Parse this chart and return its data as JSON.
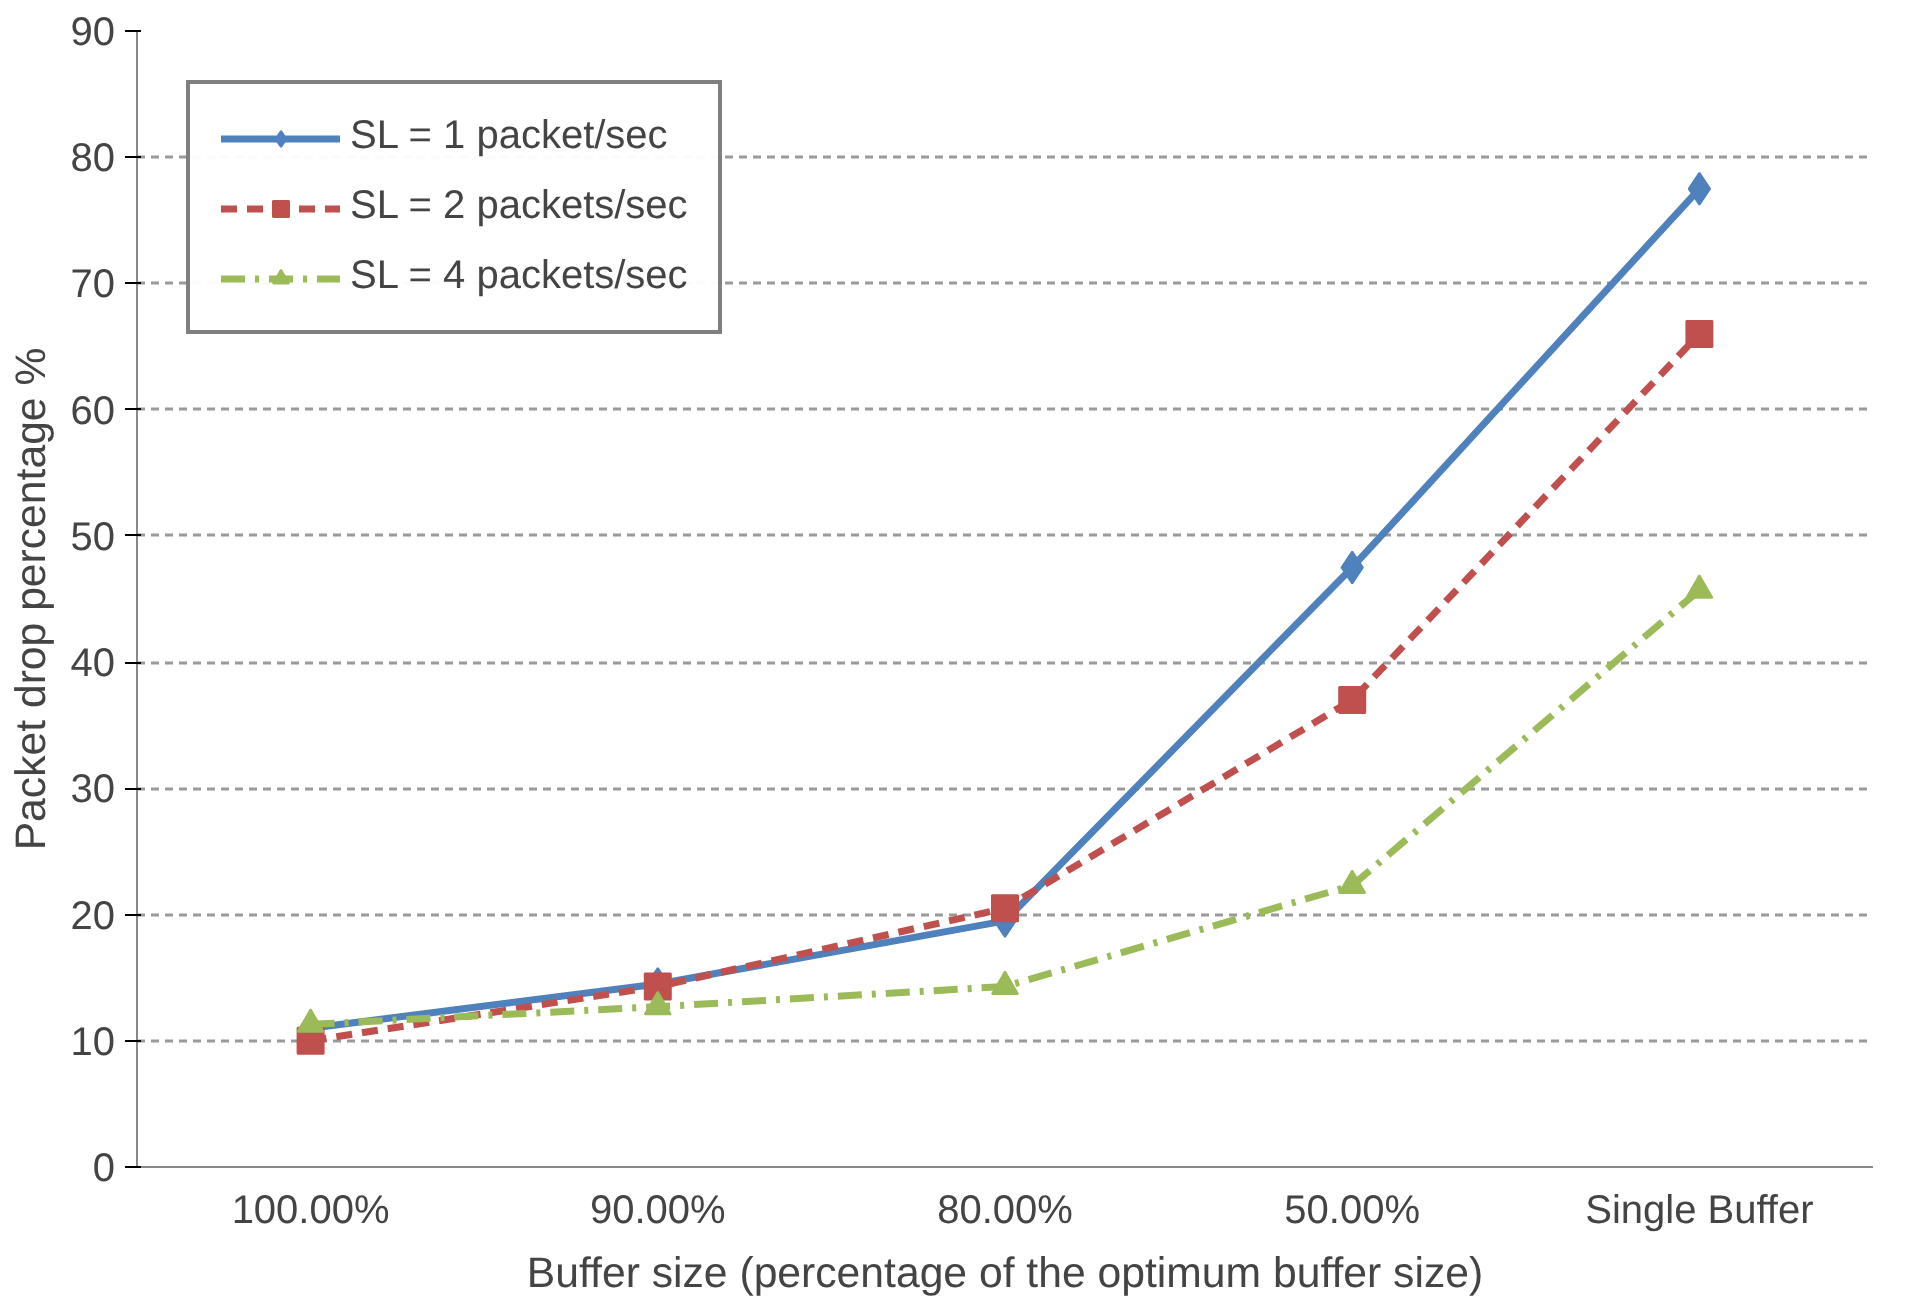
{
  "chart_data": {
    "type": "line",
    "xlabel": "Buffer size (percentage of the optimum buffer size)",
    "ylabel": "Packet drop percentage %",
    "categories": [
      "100.00%",
      "90.00%",
      "80.00%",
      "50.00%",
      "Single Buffer"
    ],
    "series": [
      {
        "name": "SL = 1 packet/sec",
        "color": "#4f81bd",
        "marker": "diamond",
        "line_style": "solid",
        "values": [
          11,
          14.5,
          19.5,
          47.5,
          77.5
        ]
      },
      {
        "name": "SL = 2 packets/sec",
        "color": "#c0504d",
        "marker": "square",
        "line_style": "dashed",
        "values": [
          10,
          14.3,
          20.5,
          37,
          66
        ]
      },
      {
        "name": "SL = 4 packets/sec",
        "color": "#9bbb59",
        "marker": "triangle",
        "line_style": "dashdot",
        "values": [
          11.3,
          12.7,
          14.3,
          22.3,
          45.7
        ]
      }
    ],
    "ylim": [
      0,
      90
    ],
    "yticks": [
      0,
      10,
      20,
      30,
      40,
      50,
      60,
      70,
      80,
      90
    ],
    "grid": "y",
    "legend": "top left"
  }
}
